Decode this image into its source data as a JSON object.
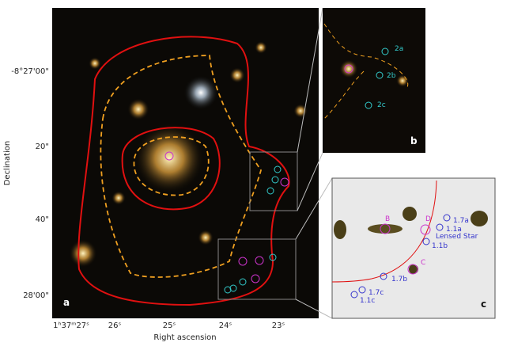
{
  "axes": {
    "y_title": "Declination",
    "x_title": "Right ascension",
    "y_ticks": [
      "-8°27'00\"",
      "20\"",
      "40\"",
      "28'00\""
    ],
    "x_ticks": [
      "1ʰ37ᵐ27ˢ",
      "26ˢ",
      "25ˢ",
      "24ˢ",
      "23ˢ"
    ]
  },
  "panel_a": {
    "label": "a"
  },
  "panel_b": {
    "label": "b",
    "images": [
      "2a",
      "2b",
      "2c"
    ]
  },
  "panel_c": {
    "label": "c",
    "images": [
      "B",
      "D",
      "1.7a",
      "1.1a",
      "Lensed Star",
      "1.1b",
      "C",
      "1.7b",
      "1.7c",
      "1.1c"
    ]
  }
}
